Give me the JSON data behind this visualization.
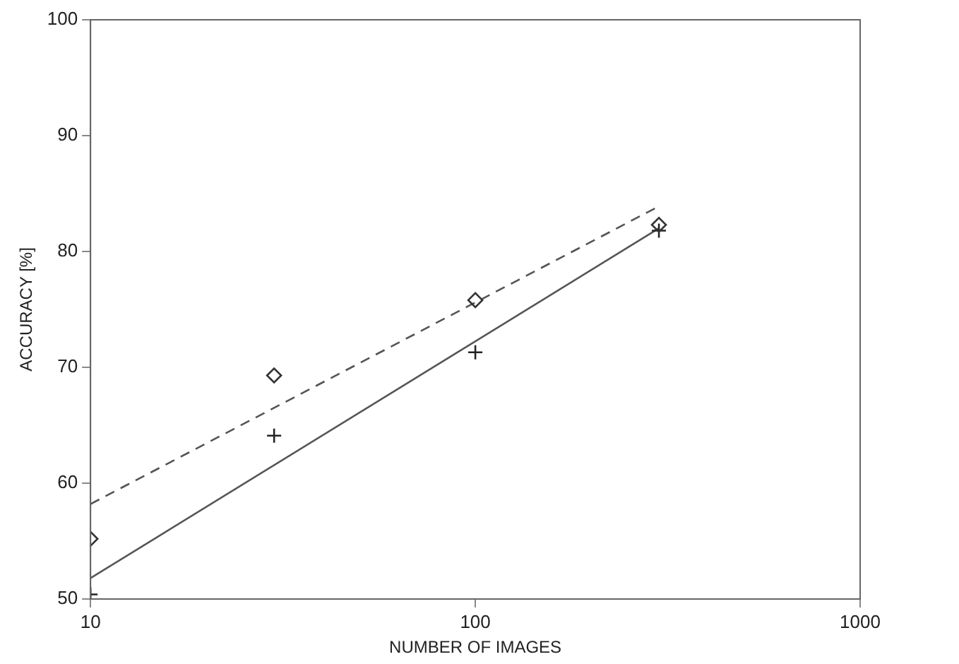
{
  "chart_data": {
    "type": "scatter",
    "xlabel": "NUMBER OF IMAGES",
    "ylabel": "ACCURACY [%]",
    "log": "x",
    "grid": false,
    "legend": false,
    "xlim": [
      10,
      1000
    ],
    "xticks": [
      10,
      100,
      1000
    ],
    "ylim": [
      50,
      100
    ],
    "yticks": [
      50,
      60,
      70,
      80,
      90,
      100
    ],
    "series": [
      {
        "type": "scatter",
        "marker": "diamond",
        "color": "#333333",
        "x": [
          10,
          30,
          100,
          300
        ],
        "values": [
          55.2,
          69.3,
          75.8,
          82.3
        ]
      },
      {
        "type": "scatter",
        "marker": "cross",
        "color": "#222222",
        "x": [
          10,
          30,
          100,
          300
        ],
        "values": [
          50.4,
          64.1,
          71.3,
          81.8
        ]
      },
      {
        "type": "line",
        "line_style": "dashed",
        "color": "#555555",
        "x": [
          10,
          300
        ],
        "values": [
          58.2,
          83.9
        ]
      },
      {
        "type": "line",
        "line_style": "solid",
        "color": "#555555",
        "x": [
          10,
          300
        ],
        "values": [
          51.8,
          82
        ]
      }
    ]
  }
}
